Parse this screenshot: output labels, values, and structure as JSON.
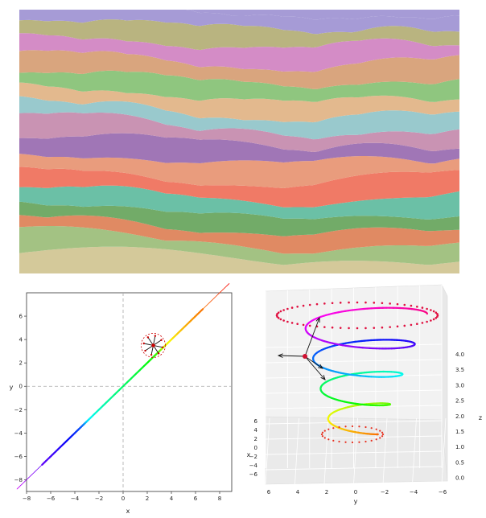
{
  "chart_data": [
    {
      "type": "area",
      "subtype": "streamgraph",
      "layers": 16,
      "colors": [
        "#d4c99a",
        "#a3c283",
        "#e08a63",
        "#72ab68",
        "#6bc0a6",
        "#f07a66",
        "#e99c7d",
        "#a076b6",
        "#c993b3",
        "#99c9cd",
        "#e3b98e",
        "#8fc67f",
        "#d9a57e",
        "#d48cc6",
        "#b9b480",
        "#a69bd6"
      ],
      "grid": false,
      "legend": "none"
    },
    {
      "type": "line",
      "title": "",
      "xlabel": "x",
      "ylabel": "y",
      "xlim": [
        -8,
        9
      ],
      "ylim": [
        -9,
        8
      ],
      "xticks": [
        "−8",
        "−6",
        "−4",
        "−2",
        "0",
        "2",
        "4",
        "6",
        "8"
      ],
      "yticks": [
        "6",
        "4",
        "2",
        "0",
        "−2",
        "−4",
        "−6",
        "−8"
      ],
      "curve": "x = t + 0.8·sin(t), y = t + 0.8·sin(t), t ∈ [−8, 8]",
      "highlight_point": {
        "x": 2.5,
        "y": 3.5
      },
      "reference_lines": {
        "x": 0,
        "y": 0
      },
      "grid": false
    },
    {
      "type": "line",
      "subtype": "3d-helix",
      "xlabel": "x",
      "ylabel": "y",
      "zlabel": "z",
      "xticks": [
        "6",
        "4",
        "2",
        "0",
        "−2",
        "−4",
        "−6"
      ],
      "yticks": [
        "6",
        "4",
        "2",
        "0",
        "−2",
        "−4",
        "−6"
      ],
      "zticks": [
        "4.0",
        "3.5",
        "3.0",
        "2.5",
        "2.0",
        "1.5",
        "1.0",
        "0.5",
        "0.0"
      ],
      "zlim": [
        0,
        4
      ],
      "grid": true
    }
  ]
}
